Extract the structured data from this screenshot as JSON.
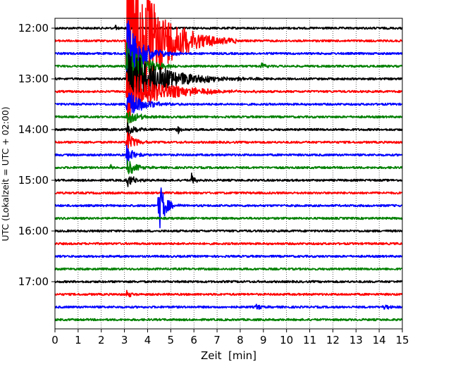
{
  "chart_data": {
    "type": "line",
    "title": "",
    "xlabel": "Zeit  [min]",
    "ylabel": "UTC (Lokalzeit = UTC + 02:00)",
    "xlim": [
      0,
      15
    ],
    "x_ticks": [
      "0",
      "1",
      "2",
      "3",
      "4",
      "5",
      "6",
      "7",
      "8",
      "9",
      "10",
      "11",
      "12",
      "13",
      "14",
      "15"
    ],
    "y_ticks": [
      "12:00",
      "13:00",
      "14:00",
      "15:00",
      "16:00",
      "17:00"
    ],
    "grid": "vertical dotted at each minute",
    "trace_colors": [
      "#000000",
      "#ff0000",
      "#0000ff",
      "#008000"
    ],
    "traces": [
      {
        "start": "12:00",
        "events": [
          {
            "t": 2.6,
            "amp": 0.25
          }
        ]
      },
      {
        "start": "12:15",
        "events": [
          {
            "t": 3.1,
            "amp": 8,
            "decay": 1.2
          }
        ]
      },
      {
        "start": "12:30",
        "events": [
          {
            "t": 3.1,
            "amp": 3,
            "decay": 0.6
          }
        ]
      },
      {
        "start": "12:45",
        "events": [
          {
            "t": 3.1,
            "amp": 2.5,
            "decay": 0.6
          },
          {
            "t": 8.9,
            "amp": 0.3
          }
        ]
      },
      {
        "start": "13:00",
        "events": [
          {
            "t": 3.1,
            "amp": 2.5,
            "decay": 1.5
          }
        ]
      },
      {
        "start": "13:15",
        "events": [
          {
            "t": 3.1,
            "amp": 1.8,
            "decay": 1.5
          }
        ]
      },
      {
        "start": "13:30",
        "events": [
          {
            "t": 3.1,
            "amp": 1.2,
            "decay": 0.6
          }
        ]
      },
      {
        "start": "13:45",
        "events": [
          {
            "t": 3.1,
            "amp": 0.8,
            "decay": 0.4
          }
        ]
      },
      {
        "start": "14:00",
        "events": [
          {
            "t": 3.1,
            "amp": 0.8,
            "decay": 0.3
          },
          {
            "t": 5.3,
            "amp": 0.35
          }
        ]
      },
      {
        "start": "14:15",
        "events": [
          {
            "t": 3.1,
            "amp": 1.0,
            "decay": 0.3
          }
        ]
      },
      {
        "start": "14:30",
        "events": [
          {
            "t": 3.1,
            "amp": 0.8,
            "decay": 0.3
          }
        ]
      },
      {
        "start": "14:45",
        "events": [
          {
            "t": 3.1,
            "amp": 0.9,
            "decay": 0.3
          },
          {
            "t": 2.4,
            "amp": 0.25
          }
        ]
      },
      {
        "start": "15:00",
        "events": [
          {
            "t": 3.1,
            "amp": 0.6,
            "decay": 0.3
          },
          {
            "t": 5.9,
            "amp": 0.5
          }
        ]
      },
      {
        "start": "15:15",
        "events": []
      },
      {
        "start": "15:30",
        "events": [
          {
            "t": 4.5,
            "amp": 2.2,
            "decay": 0.25
          }
        ]
      },
      {
        "start": "15:45",
        "events": []
      },
      {
        "start": "16:00",
        "events": []
      },
      {
        "start": "16:15",
        "events": []
      },
      {
        "start": "16:30",
        "events": []
      },
      {
        "start": "16:45",
        "events": []
      },
      {
        "start": "17:00",
        "events": []
      },
      {
        "start": "17:15",
        "events": [
          {
            "t": 3.1,
            "amp": 0.35
          }
        ]
      },
      {
        "start": "17:30",
        "events": [
          {
            "t": 8.7,
            "amp": 0.35
          },
          {
            "t": 14.2,
            "amp": 0.35
          }
        ]
      },
      {
        "start": "17:45",
        "events": []
      }
    ]
  }
}
